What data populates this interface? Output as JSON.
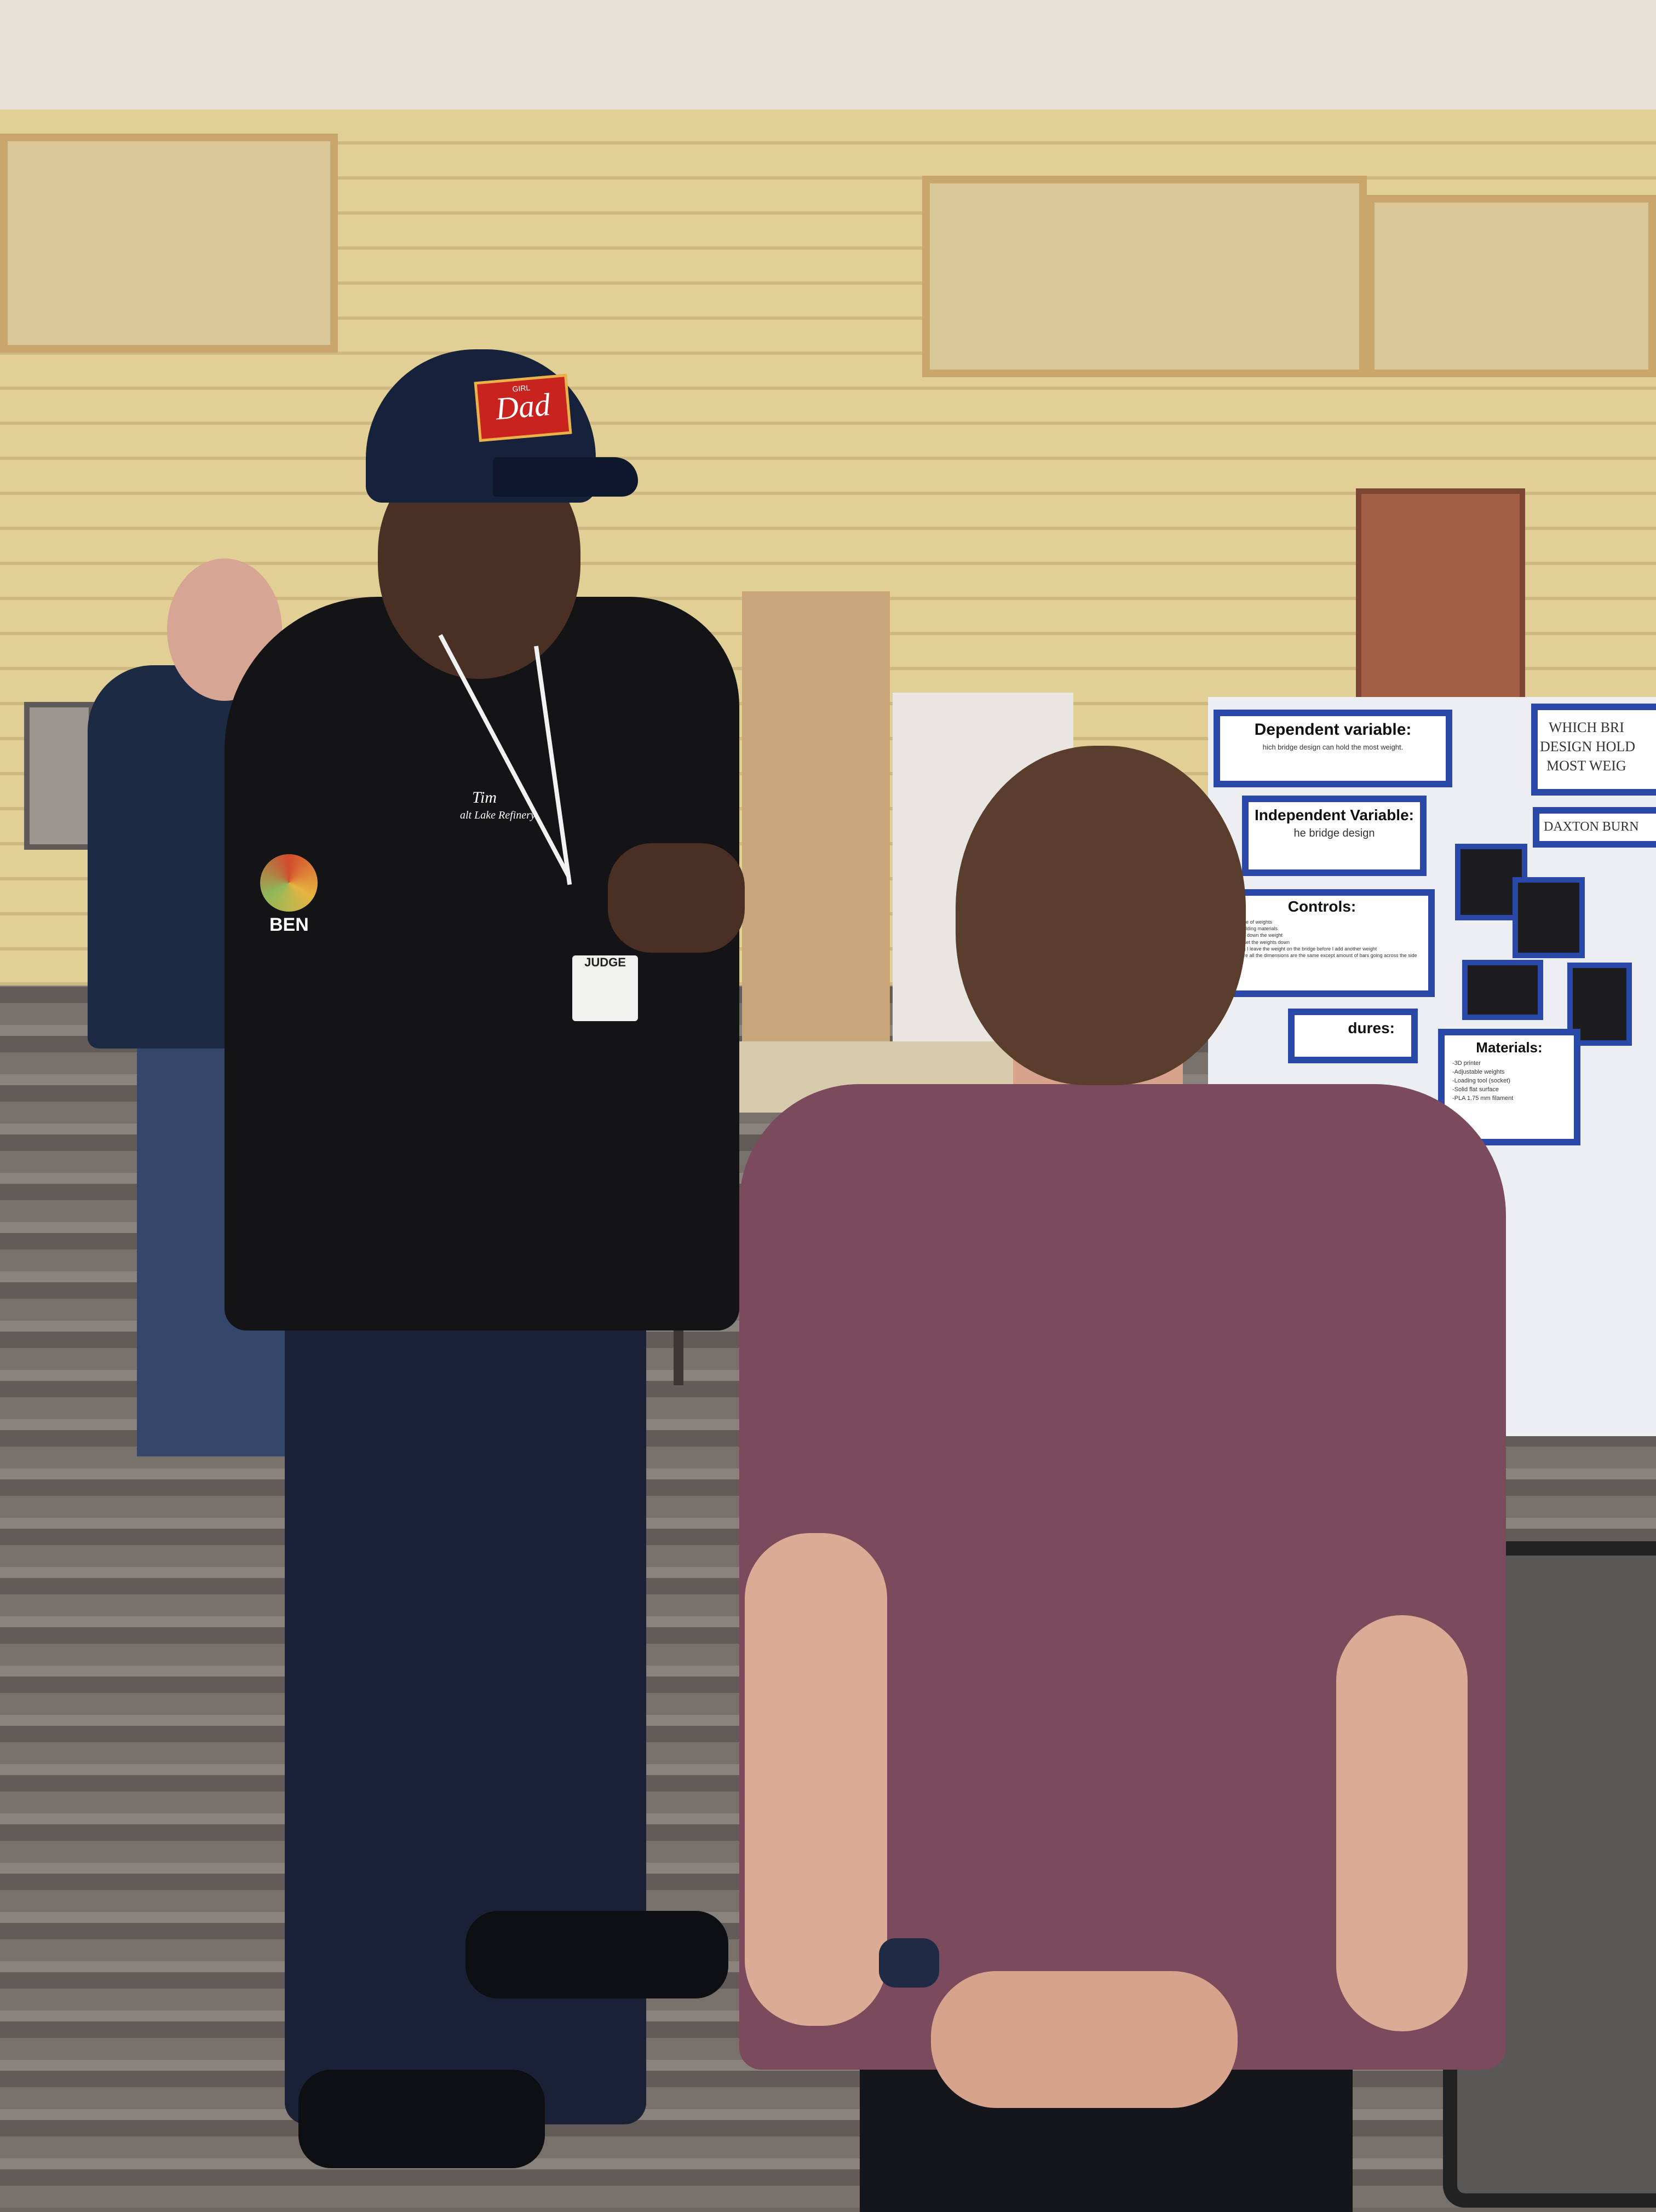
{
  "scene": {
    "hat_patch": {
      "small": "GIRL",
      "big": "Dad"
    },
    "shirt": {
      "name": "Tim",
      "company": "alt Lake Refinery",
      "sleeve_patch": "BEN"
    },
    "badge": "JUDGE"
  },
  "poster": {
    "title_lines": [
      "WHICH BRI",
      "DESIGN HOLD",
      "MOST WEIG"
    ],
    "student_name": "DAXTON BURN",
    "dependent": {
      "heading": "Dependent variable:",
      "text": "hich bridge design can hold the most weight."
    },
    "independent": {
      "heading": "Independent Variable:",
      "text": "he bridge design"
    },
    "controls": {
      "heading": "Controls:",
      "items": [
        "-Same type of weights",
        "-Same building materials",
        "-How I set down the weight",
        "-Where I set the weights down",
        "-How long I leave the weight on the bridge before I add another weight",
        "-Make sure all the dimensions are the same except amount of bars going across the side"
      ]
    },
    "procedures": {
      "heading": "dures:"
    },
    "materials": {
      "heading": "Materials:",
      "items": [
        "-3D printer",
        "-Adjustable weights",
        "-Loading tool (socket)",
        "-Solid flat surface",
        "-PLA 1.75 mm filament"
      ]
    }
  },
  "colors": {
    "wall": "#e2cf96",
    "poster_border": "#2a48a8",
    "boy_shirt": "#7b4a5d",
    "carpet": "#77706b"
  }
}
